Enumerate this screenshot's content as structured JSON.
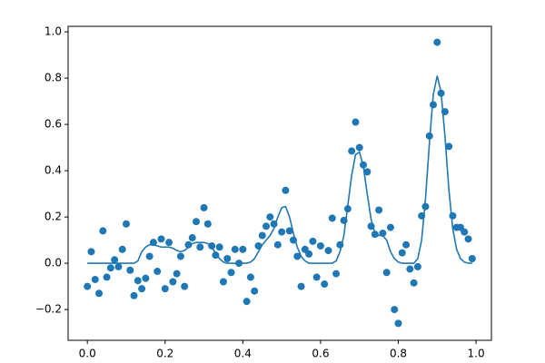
{
  "chart_data": {
    "type": "combo",
    "x": [
      0,
      0.01,
      0.02,
      0.03,
      0.04,
      0.05,
      0.06,
      0.07,
      0.08,
      0.09,
      0.1,
      0.11,
      0.12,
      0.13,
      0.14,
      0.15,
      0.16,
      0.17,
      0.18,
      0.19,
      0.2,
      0.21,
      0.22,
      0.23,
      0.24,
      0.25,
      0.26,
      0.27,
      0.28,
      0.29,
      0.3,
      0.31,
      0.32,
      0.33,
      0.34,
      0.35,
      0.36,
      0.37,
      0.38,
      0.39,
      0.4,
      0.41,
      0.42,
      0.43,
      0.44,
      0.45,
      0.46,
      0.47,
      0.48,
      0.49,
      0.5,
      0.51,
      0.52,
      0.53,
      0.54,
      0.55,
      0.56,
      0.57,
      0.58,
      0.59,
      0.6,
      0.61,
      0.62,
      0.63,
      0.64,
      0.65,
      0.66,
      0.67,
      0.68,
      0.69,
      0.7,
      0.71,
      0.72,
      0.73,
      0.74,
      0.75,
      0.76,
      0.77,
      0.78,
      0.79,
      0.8,
      0.81,
      0.82,
      0.83,
      0.84,
      0.85,
      0.86,
      0.87,
      0.88,
      0.89,
      0.9,
      0.91,
      0.92,
      0.93,
      0.94,
      0.95,
      0.96,
      0.97,
      0.98,
      0.99
    ],
    "series": [
      {
        "type": "scatter",
        "color": "#1f77b4",
        "values": [
          -0.1,
          0.05,
          -0.07,
          -0.13,
          0.14,
          -0.06,
          -0.02,
          0.015,
          -0.015,
          0.06,
          0.17,
          -0.03,
          -0.14,
          -0.075,
          -0.11,
          -0.065,
          0.03,
          0.09,
          -0.035,
          0.105,
          -0.11,
          0.09,
          -0.08,
          -0.045,
          0.03,
          -0.1,
          0.08,
          0.11,
          0.18,
          0.07,
          0.24,
          0.17,
          0.075,
          0.035,
          0.07,
          -0.08,
          0.02,
          -0.04,
          0.06,
          0.0,
          0.06,
          -0.165,
          -0.06,
          -0.12,
          0.075,
          0.12,
          0.16,
          0.2,
          0.17,
          0.08,
          0.135,
          0.315,
          0.14,
          0.1,
          0.03,
          -0.1,
          0.06,
          0.04,
          0.095,
          -0.06,
          0.075,
          -0.09,
          0.055,
          0.195,
          -0.045,
          0.08,
          0.185,
          0.235,
          0.485,
          0.61,
          0.5,
          0.425,
          0.395,
          0.16,
          0.125,
          0.23,
          0.13,
          -0.04,
          0.155,
          -0.2,
          -0.26,
          0.045,
          0.08,
          -0.025,
          -0.085,
          -0.015,
          0.205,
          0.245,
          0.55,
          0.685,
          0.955,
          0.735,
          0.655,
          0.505,
          0.205,
          0.155,
          0.155,
          0.135,
          0.105,
          0.02
        ]
      },
      {
        "type": "line",
        "color": "#1f77b4",
        "values": [
          0,
          0,
          0,
          0,
          0,
          0,
          0,
          0,
          0,
          0,
          0,
          0,
          0,
          0.01,
          0.05,
          0.07,
          0.08,
          0.08,
          0.075,
          0.07,
          0.07,
          0.07,
          0.065,
          0.055,
          0.05,
          0.055,
          0.07,
          0.085,
          0.09,
          0.09,
          0.09,
          0.085,
          0.07,
          0.045,
          0.02,
          0.005,
          0,
          0,
          0,
          0,
          0,
          0,
          0.005,
          0.02,
          0.05,
          0.08,
          0.1,
          0.12,
          0.15,
          0.2,
          0.24,
          0.245,
          0.2,
          0.13,
          0.07,
          0.03,
          0.01,
          0,
          0,
          0,
          0,
          0,
          0,
          0,
          0.01,
          0.05,
          0.12,
          0.25,
          0.38,
          0.47,
          0.48,
          0.42,
          0.3,
          0.19,
          0.13,
          0.12,
          0.12,
          0.1,
          0.05,
          0.02,
          0.005,
          0,
          0,
          0,
          0,
          0.02,
          0.1,
          0.28,
          0.52,
          0.73,
          0.81,
          0.74,
          0.55,
          0.32,
          0.15,
          0.06,
          0.02,
          0.005,
          0,
          0
        ]
      }
    ],
    "xlim": [
      -0.0495,
      1.0395
    ],
    "xticks": [
      {
        "value": 0,
        "label": "0.0"
      },
      {
        "value": 0.2,
        "label": "0.2"
      },
      {
        "value": 0.4,
        "label": "0.4"
      },
      {
        "value": 0.6,
        "label": "0.6"
      },
      {
        "value": 0.8,
        "label": "0.8"
      },
      {
        "value": 1,
        "label": "1.0"
      }
    ],
    "ylim": [
      -0.333,
      1.024
    ],
    "yticks": [
      {
        "value": -0.2,
        "label": "−0.2"
      },
      {
        "value": 0,
        "label": "0.0"
      },
      0.2,
      0.4,
      0.6,
      0.8,
      {
        "value": 1,
        "label": "1.0"
      }
    ]
  }
}
